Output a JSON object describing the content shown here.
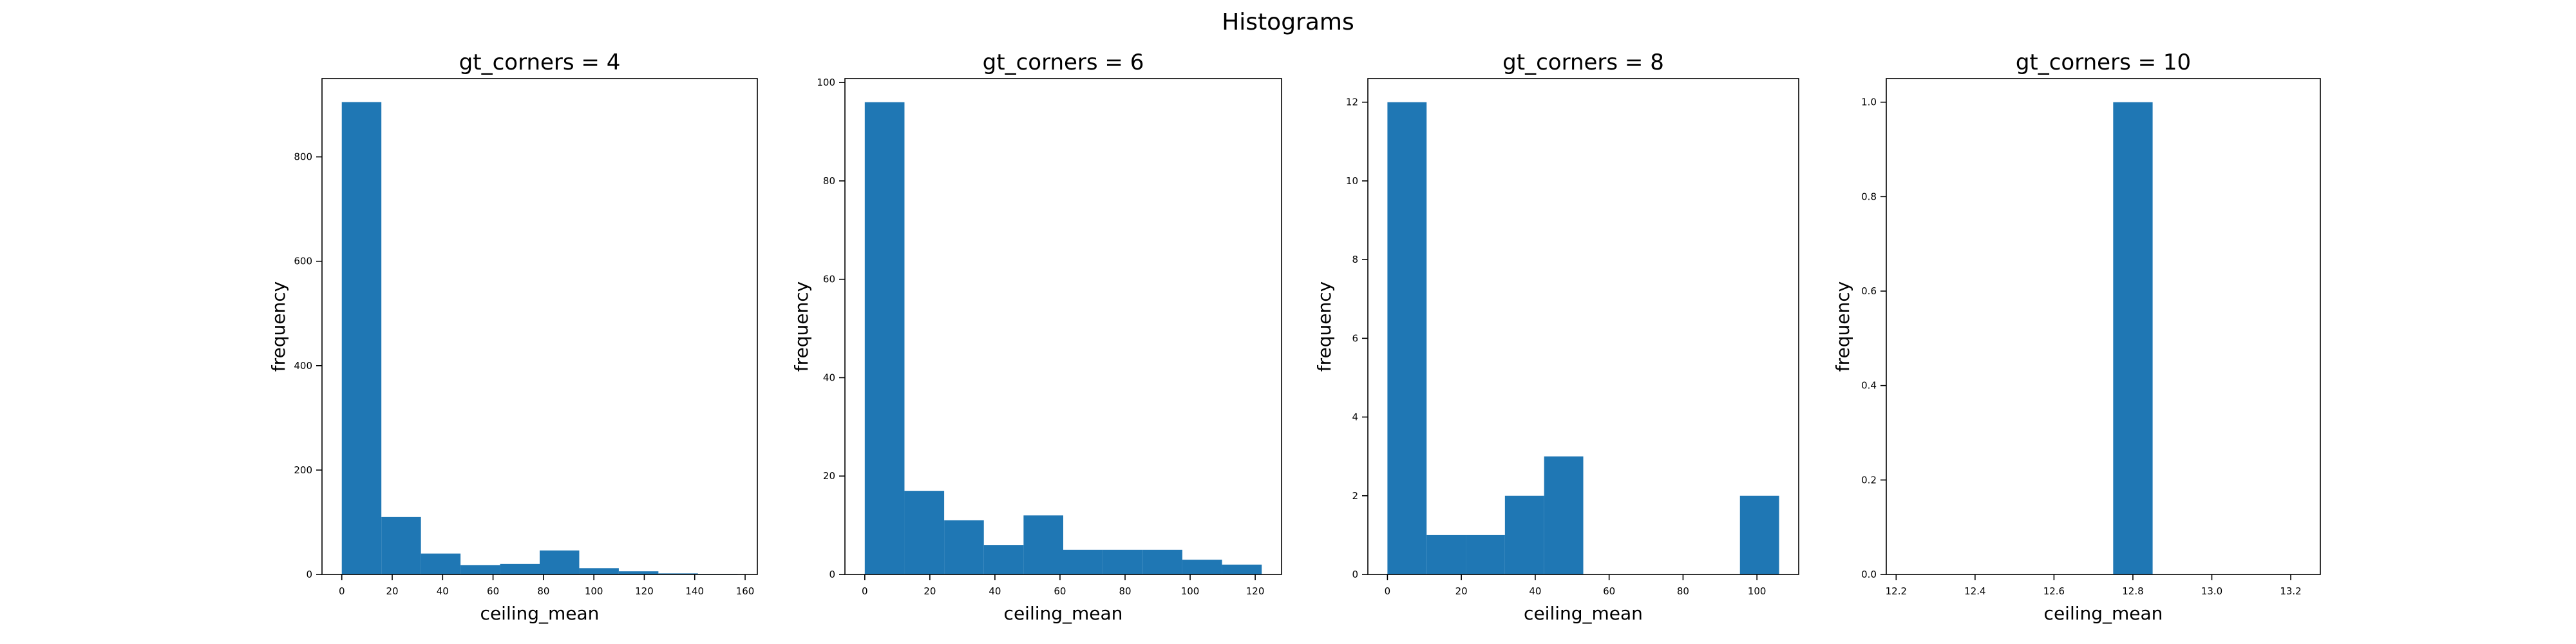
{
  "figure": {
    "title": "Histograms",
    "bar_color": "#1f77b4"
  },
  "chart_data": [
    {
      "type": "bar",
      "title": "gt_corners = 4",
      "xlabel": "ceiling_mean",
      "ylabel": "frequency",
      "bins": [
        {
          "start": 0,
          "end": 15.7,
          "value": 905
        },
        {
          "start": 15.7,
          "end": 31.4,
          "value": 110
        },
        {
          "start": 31.4,
          "end": 47.1,
          "value": 40
        },
        {
          "start": 47.1,
          "end": 62.8,
          "value": 18
        },
        {
          "start": 62.8,
          "end": 78.5,
          "value": 20
        },
        {
          "start": 78.5,
          "end": 94.2,
          "value": 46
        },
        {
          "start": 94.2,
          "end": 109.9,
          "value": 12
        },
        {
          "start": 109.9,
          "end": 125.6,
          "value": 6
        },
        {
          "start": 125.6,
          "end": 141.3,
          "value": 2
        },
        {
          "start": 141.3,
          "end": 157,
          "value": 1
        }
      ],
      "xlim": [
        -7.85,
        164.85
      ],
      "ylim": [
        0,
        950
      ],
      "xticks": [
        0,
        20,
        40,
        60,
        80,
        100,
        120,
        140,
        160
      ],
      "xtick_labels": [
        "0",
        "20",
        "40",
        "60",
        "80",
        "100",
        "120",
        "140",
        "160"
      ],
      "yticks": [
        0,
        200,
        400,
        600,
        800
      ],
      "ytick_labels": [
        "0",
        "200",
        "400",
        "600",
        "800"
      ],
      "grid": false
    },
    {
      "type": "bar",
      "title": "gt_corners = 6",
      "xlabel": "ceiling_mean",
      "ylabel": "frequency",
      "bins": [
        {
          "start": 0,
          "end": 12.2,
          "value": 96
        },
        {
          "start": 12.2,
          "end": 24.4,
          "value": 17
        },
        {
          "start": 24.4,
          "end": 36.6,
          "value": 11
        },
        {
          "start": 36.6,
          "end": 48.8,
          "value": 6
        },
        {
          "start": 48.8,
          "end": 61,
          "value": 12
        },
        {
          "start": 61,
          "end": 73.2,
          "value": 5
        },
        {
          "start": 73.2,
          "end": 85.4,
          "value": 5
        },
        {
          "start": 85.4,
          "end": 97.6,
          "value": 5
        },
        {
          "start": 97.6,
          "end": 109.8,
          "value": 3
        },
        {
          "start": 109.8,
          "end": 122,
          "value": 2
        }
      ],
      "xlim": [
        -6.1,
        128.1
      ],
      "ylim": [
        0,
        100.8
      ],
      "xticks": [
        0,
        20,
        40,
        60,
        80,
        100,
        120
      ],
      "xtick_labels": [
        "0",
        "20",
        "40",
        "60",
        "80",
        "100",
        "120"
      ],
      "yticks": [
        0,
        20,
        40,
        60,
        80,
        100
      ],
      "ytick_labels": [
        "0",
        "20",
        "40",
        "60",
        "80",
        "100"
      ],
      "grid": false
    },
    {
      "type": "bar",
      "title": "gt_corners = 8",
      "xlabel": "ceiling_mean",
      "ylabel": "frequency",
      "bins": [
        {
          "start": 0,
          "end": 10.6,
          "value": 12
        },
        {
          "start": 10.6,
          "end": 21.2,
          "value": 1
        },
        {
          "start": 21.2,
          "end": 31.8,
          "value": 1
        },
        {
          "start": 31.8,
          "end": 42.4,
          "value": 2
        },
        {
          "start": 42.4,
          "end": 53,
          "value": 3
        },
        {
          "start": 53,
          "end": 63.6,
          "value": 0
        },
        {
          "start": 63.6,
          "end": 74.2,
          "value": 0
        },
        {
          "start": 74.2,
          "end": 84.8,
          "value": 0
        },
        {
          "start": 84.8,
          "end": 95.4,
          "value": 0
        },
        {
          "start": 95.4,
          "end": 106,
          "value": 2
        }
      ],
      "xlim": [
        -5.3,
        111.3
      ],
      "ylim": [
        0,
        12.6
      ],
      "xticks": [
        0,
        20,
        40,
        60,
        80,
        100
      ],
      "xtick_labels": [
        "0",
        "20",
        "40",
        "60",
        "80",
        "100"
      ],
      "yticks": [
        0,
        2,
        4,
        6,
        8,
        10,
        12
      ],
      "ytick_labels": [
        "0",
        "2",
        "4",
        "6",
        "8",
        "10",
        "12"
      ],
      "grid": false
    },
    {
      "type": "bar",
      "title": "gt_corners = 10",
      "xlabel": "ceiling_mean",
      "ylabel": "frequency",
      "bins": [
        {
          "start": 12.75,
          "end": 12.85,
          "value": 1
        }
      ],
      "xlim": [
        12.175,
        13.275
      ],
      "ylim": [
        0,
        1.05
      ],
      "xticks": [
        12.2,
        12.4,
        12.6,
        12.8,
        13.0,
        13.2
      ],
      "xtick_labels": [
        "12.2",
        "12.4",
        "12.6",
        "12.8",
        "13.0",
        "13.2"
      ],
      "yticks": [
        0,
        0.2,
        0.4,
        0.6,
        0.8,
        1.0
      ],
      "ytick_labels": [
        "0.0",
        "0.2",
        "0.4",
        "0.6",
        "0.8",
        "1.0"
      ],
      "grid": false
    }
  ]
}
